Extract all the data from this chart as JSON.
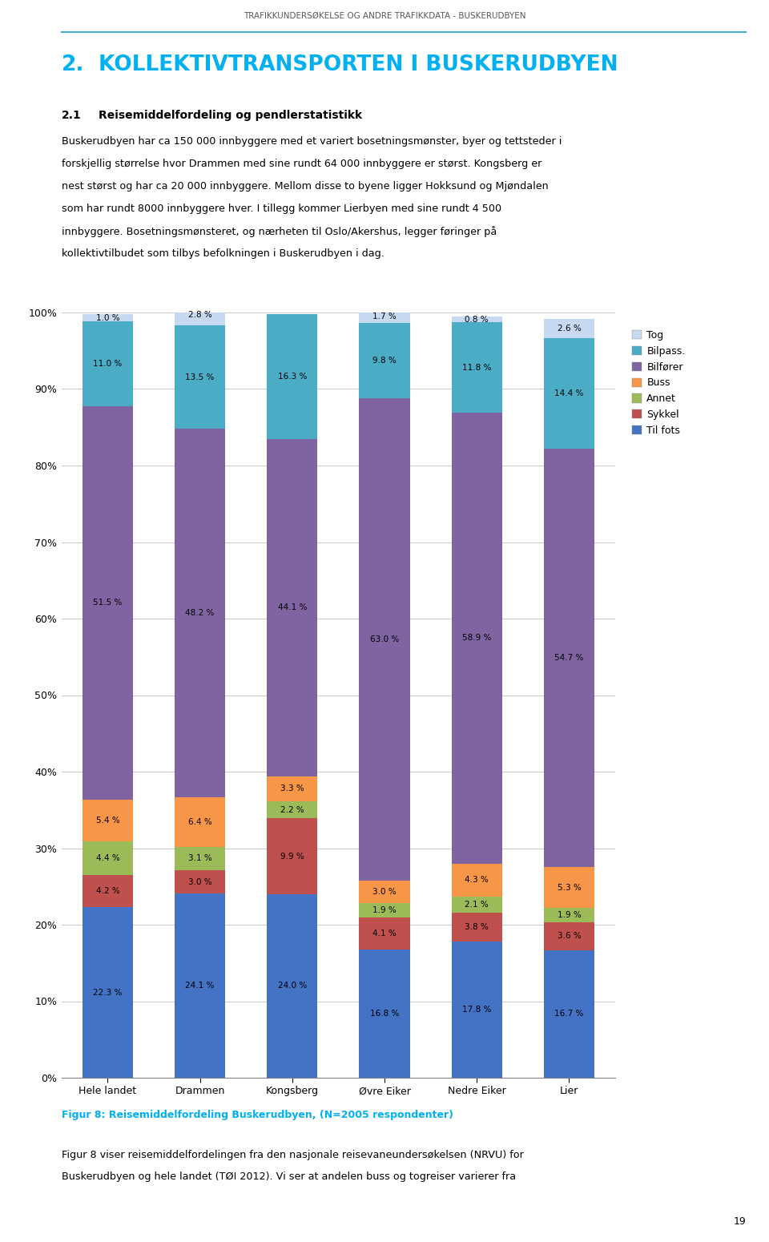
{
  "categories": [
    "Hele landet",
    "Drammen",
    "Kongsberg",
    "Øvre Eiker",
    "Nedre Eiker",
    "Lier"
  ],
  "series": {
    "Til fots": [
      22.3,
      24.1,
      24.0,
      16.8,
      17.8,
      16.7
    ],
    "Sykkel": [
      4.2,
      3.0,
      9.9,
      4.1,
      3.8,
      3.6
    ],
    "Annet": [
      4.4,
      3.1,
      2.2,
      1.9,
      2.1,
      1.9
    ],
    "Buss": [
      5.4,
      6.4,
      3.3,
      3.0,
      4.3,
      5.3
    ],
    "Bilfører": [
      51.5,
      48.2,
      44.1,
      63.0,
      58.9,
      54.7
    ],
    "Bilpass.": [
      11.0,
      13.5,
      16.3,
      9.8,
      11.8,
      14.4
    ],
    "Tog": [
      1.0,
      2.8,
      0.0,
      1.7,
      0.8,
      2.6
    ]
  },
  "colors": {
    "Til fots": "#4472C4",
    "Sykkel": "#C0504D",
    "Annet": "#9BBB59",
    "Buss": "#F79646",
    "Bilfører": "#8064A2",
    "Bilpass.": "#4BACC6",
    "Tog": "#C6D9F1"
  },
  "legend_order": [
    "Tog",
    "Bilpass.",
    "Bilfører",
    "Buss",
    "Annet",
    "Sykkel",
    "Til fots"
  ],
  "header": "TRAFIKKUNDERSØKELSE OG ANDRE TRAFIKKDATA - BUSKERUDBYEN",
  "chapter_number": "2.",
  "chapter_title": "KOLLEKTIVTRANSPORTEN I BUSKERUDBYEN",
  "section_number": "2.1",
  "section_title": "Reisemiddelfordeling og pendlerstatistikk",
  "body_lines": [
    "Buskerudbyen har ca 150 000 innbyggere med et variert bosetningsmønster, byer og tettsteder i",
    "forskjellig størrelse hvor Drammen med sine rundt 64 000 innbyggere er størst. Kongsberg er",
    "nest størst og har ca 20 000 innbyggere. Mellom disse to byene ligger Hokksund og Mjøndalen",
    "som har rundt 8000 innbyggere hver. I tillegg kommer Lierbyen med sine rundt 4 500",
    "innbyggere. Bosetningsmønsteret, og nærheten til Oslo/Akershus, legger føringer på",
    "kollektivtilbudet som tilbys befolkningen i Buskerudbyen i dag."
  ],
  "figure_caption": "Figur 8: Reisemiddelfordeling Buskerudbyen, (N=2005 respondenter)",
  "footer_lines": [
    "Figur 8 viser reisemiddelfordelingen fra den nasjonale reisevaneundersøkelsen (NRVU) for",
    "Buskerudbyen og hele landet (TØI 2012). Vi ser at andelen buss og togreiser varierer fra"
  ],
  "page_number": "19",
  "chapter_title_color": "#00B0F0",
  "figure_caption_color": "#00B0F0",
  "header_color": "#595959",
  "body_color": "#000000",
  "ylim": [
    0,
    100
  ],
  "yticks": [
    0,
    10,
    20,
    30,
    40,
    50,
    60,
    70,
    80,
    90,
    100
  ],
  "ytick_labels": [
    "0%",
    "10%",
    "20%",
    "30%",
    "40%",
    "50%",
    "60%",
    "70%",
    "80%",
    "90%",
    "100%"
  ],
  "bar_width": 0.55,
  "background_color": "#ffffff",
  "series_order": [
    "Til fots",
    "Sykkel",
    "Annet",
    "Buss",
    "Bilfører",
    "Bilpass.",
    "Tog"
  ]
}
